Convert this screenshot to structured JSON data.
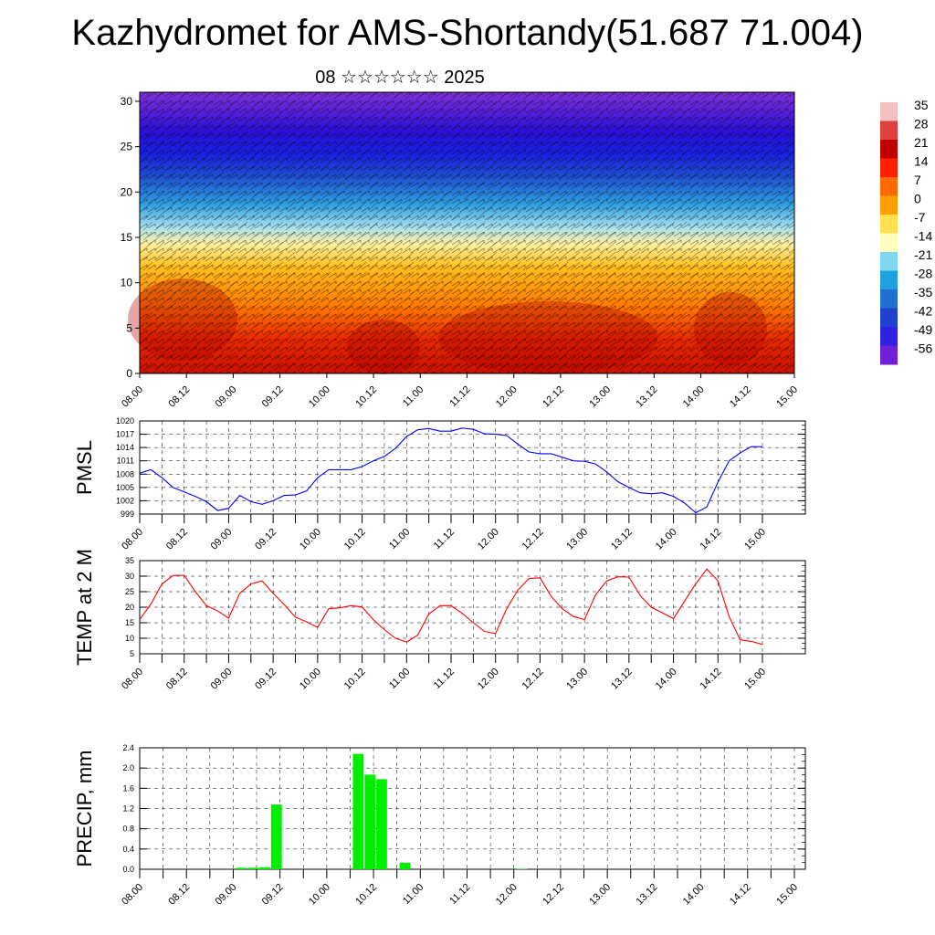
{
  "title": "Kazhydromet for AMS-Shortandy(51.687 71.004)",
  "subtitle": "08 ☆☆☆☆☆☆ 2025",
  "time_labels": [
    "08.00",
    "08.12",
    "09.00",
    "09.12",
    "10.00",
    "10.12",
    "11.00",
    "11.12",
    "12.00",
    "12.12",
    "13.00",
    "13.12",
    "14.00",
    "14.12",
    "15.00"
  ],
  "colors": {
    "pmsl": "#0000ff",
    "temp": "#ff0000",
    "precip": "#00ee00"
  },
  "chart_data": [
    {
      "type": "heatmap",
      "title": "",
      "ylim": [
        0,
        31
      ],
      "yticks": [
        "0",
        "5",
        "10",
        "15",
        "20",
        "25",
        "30"
      ],
      "colorbar": {
        "labels": [
          "35",
          "28",
          "21",
          "14",
          "7",
          "0",
          "-7",
          "-14",
          "-21",
          "-28",
          "-35",
          "-42",
          "-49",
          "-56"
        ],
        "colors": [
          "#f2c0c0",
          "#e04040",
          "#c00000",
          "#ff2000",
          "#ff6a00",
          "#ffa000",
          "#ffe050",
          "#ffffc0",
          "#80d8f0",
          "#20a0e0",
          "#2070d0",
          "#2040d0",
          "#3020e0",
          "#7020d8"
        ]
      }
    },
    {
      "type": "line",
      "name": "PMSL",
      "ylabel": "PMSL",
      "ylim": [
        999,
        1020
      ],
      "yticks": [
        "999",
        "1002",
        "1005",
        "1008",
        "1011",
        "1014",
        "1017",
        "1020"
      ],
      "x_hours": [
        0,
        3,
        6,
        9,
        12,
        15,
        18,
        21,
        24,
        27,
        30,
        33,
        36,
        39,
        42,
        45,
        48,
        51,
        54,
        57,
        60,
        63,
        66,
        69,
        72,
        75,
        78,
        81,
        84,
        87,
        90,
        93,
        96,
        99,
        102,
        105,
        108,
        111,
        114,
        117,
        120,
        123,
        126,
        129,
        132,
        135,
        138,
        141,
        144,
        147,
        150,
        153,
        156,
        159,
        162,
        165,
        168
      ],
      "values": [
        1008.2,
        1009.0,
        1007.2,
        1005.0,
        1004.0,
        1003.0,
        1001.8,
        999.8,
        1000.3,
        1003.2,
        1001.8,
        1001.2,
        1002.0,
        1003.2,
        1003.3,
        1004.2,
        1007.2,
        1009.0,
        1009.0,
        1009.0,
        1009.7,
        1011.0,
        1012.0,
        1013.8,
        1016.5,
        1018.0,
        1018.3,
        1017.7,
        1017.7,
        1018.4,
        1018.1,
        1017.1,
        1017.0,
        1016.7,
        1014.8,
        1013.0,
        1012.6,
        1012.6,
        1011.8,
        1011.0,
        1010.9,
        1010.3,
        1008.5,
        1006.3,
        1005.0,
        1003.8,
        1003.6,
        1003.8,
        1003.0,
        1001.5,
        999.3,
        1000.6,
        1006.2,
        1011.0,
        1012.8,
        1014.2,
        1014.2
      ]
    },
    {
      "type": "line",
      "name": "TEMP at 2 M",
      "ylabel": "TEMP at 2 M",
      "ylim": [
        5,
        35
      ],
      "yticks": [
        "5",
        "10",
        "15",
        "20",
        "25",
        "30",
        "35"
      ],
      "x_hours": [
        0,
        3,
        6,
        9,
        12,
        15,
        18,
        21,
        24,
        27,
        30,
        33,
        36,
        39,
        42,
        45,
        48,
        51,
        54,
        57,
        60,
        63,
        66,
        69,
        72,
        75,
        78,
        81,
        84,
        87,
        90,
        93,
        96,
        99,
        102,
        105,
        108,
        111,
        114,
        117,
        120,
        123,
        126,
        129,
        132,
        135,
        138,
        141,
        144,
        147,
        150,
        153,
        156,
        159,
        162,
        165,
        168
      ],
      "values": [
        16.0,
        21.0,
        27.5,
        30.2,
        30.3,
        25.0,
        20.5,
        18.8,
        16.5,
        24.5,
        27.5,
        28.5,
        24.5,
        20.8,
        16.8,
        15.3,
        13.5,
        19.5,
        19.8,
        20.5,
        20.1,
        16.0,
        12.8,
        10.0,
        8.8,
        11.0,
        17.8,
        20.5,
        20.5,
        18.0,
        15.0,
        12.2,
        11.5,
        19.5,
        25.5,
        29.2,
        29.5,
        23.5,
        19.5,
        17.0,
        16.0,
        24.0,
        28.5,
        29.8,
        29.7,
        23.8,
        20.0,
        18.2,
        16.3,
        22.0,
        27.5,
        32.3,
        28.5,
        17.0,
        9.5,
        9.0,
        8.0
      ]
    },
    {
      "type": "bar",
      "name": "PRECIP, mm",
      "ylabel": "PRECIP, mm",
      "ylim": [
        0,
        2.4
      ],
      "yticks": [
        "0.0",
        "0.4",
        "0.8",
        "1.2",
        "1.6",
        "2.0",
        "2.4"
      ],
      "x_hours": [
        24,
        27,
        30,
        33,
        54,
        57,
        60,
        66,
        96
      ],
      "values": [
        0.03,
        0.03,
        0.04,
        1.28,
        2.28,
        1.87,
        1.78,
        0.13,
        0.01
      ]
    }
  ]
}
